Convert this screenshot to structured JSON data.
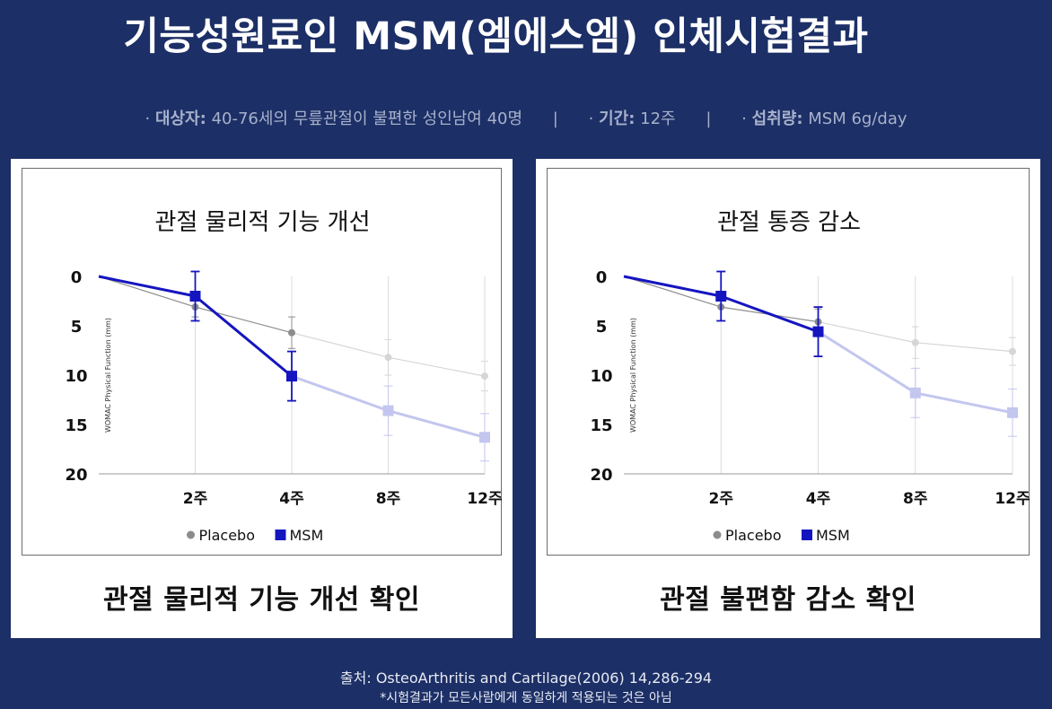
{
  "header": {
    "title": "기능성원료인 MSM(엠에스엠) 인체시험결과",
    "subject_label": "대상자",
    "subject_value": "40-76세의 무릎관절이 불편한 성인남여 40명",
    "period_label": "기간",
    "period_value": "12주",
    "intake_label": "섭취량",
    "intake_value": "MSM 6g/day",
    "separator": "|",
    "bullet": "·"
  },
  "panels": {
    "left": {
      "caption": "관절 물리적 기능 개선 확인"
    },
    "right": {
      "caption": "관절 불편함 감소 확인"
    }
  },
  "footer": {
    "source": "출처: OsteoArthritis and Cartilage(2006) 14,286-294",
    "note": "*시험결과가 모든사람에게 동일하게 적용되는 것은 아님"
  },
  "colors": {
    "background": "#1c2f66",
    "msm": "#1515c0",
    "msm_faded": "#c3c6ee",
    "placebo": "#8c8c8c",
    "placebo_faded": "#d6d6d6"
  },
  "chart_data": [
    {
      "type": "line",
      "title": "관절 물리적 기능 개선",
      "ylabel": "WOMAC Physical Function (mm)",
      "y_inverted": true,
      "ylim": [
        0,
        20
      ],
      "yticks": [
        "0",
        "5",
        "10",
        "15",
        "20"
      ],
      "ytick_values": [
        0,
        5,
        10,
        15,
        20
      ],
      "x": [
        0,
        2,
        4,
        8,
        12
      ],
      "xtick_labels": [
        "",
        "2주",
        "4주",
        "8주",
        "12주"
      ],
      "highlight_until_index": 2,
      "grid": "vertical",
      "legend": "bottom",
      "series": [
        {
          "name": "Placebo",
          "marker": "circle",
          "values": [
            0,
            3.1,
            5.7,
            8.2,
            10.1
          ],
          "err": [
            0,
            1.0,
            1.6,
            1.8,
            1.5
          ]
        },
        {
          "name": "MSM",
          "marker": "square",
          "values": [
            0,
            2.0,
            10.1,
            13.6,
            16.3
          ],
          "err": [
            0,
            2.5,
            2.5,
            2.5,
            2.4
          ]
        }
      ]
    },
    {
      "type": "line",
      "title": "관절 통증 감소",
      "ylabel": "WOMAC Physical Function (mm)",
      "y_inverted": true,
      "ylim": [
        0,
        20
      ],
      "yticks": [
        "0",
        "5",
        "10",
        "15",
        "20"
      ],
      "ytick_values": [
        0,
        5,
        10,
        15,
        20
      ],
      "x": [
        0,
        2,
        4,
        8,
        12
      ],
      "xtick_labels": [
        "",
        "2주",
        "4주",
        "8주",
        "12주"
      ],
      "highlight_until_index": 2,
      "grid": "vertical",
      "legend": "bottom",
      "series": [
        {
          "name": "Placebo",
          "marker": "circle",
          "values": [
            0,
            3.1,
            4.6,
            6.7,
            7.6
          ],
          "err": [
            0,
            1.4,
            1.3,
            1.6,
            1.4
          ]
        },
        {
          "name": "MSM",
          "marker": "square",
          "values": [
            0,
            2.0,
            5.6,
            11.8,
            13.8
          ],
          "err": [
            0,
            2.5,
            2.5,
            2.5,
            2.4
          ]
        }
      ]
    }
  ]
}
